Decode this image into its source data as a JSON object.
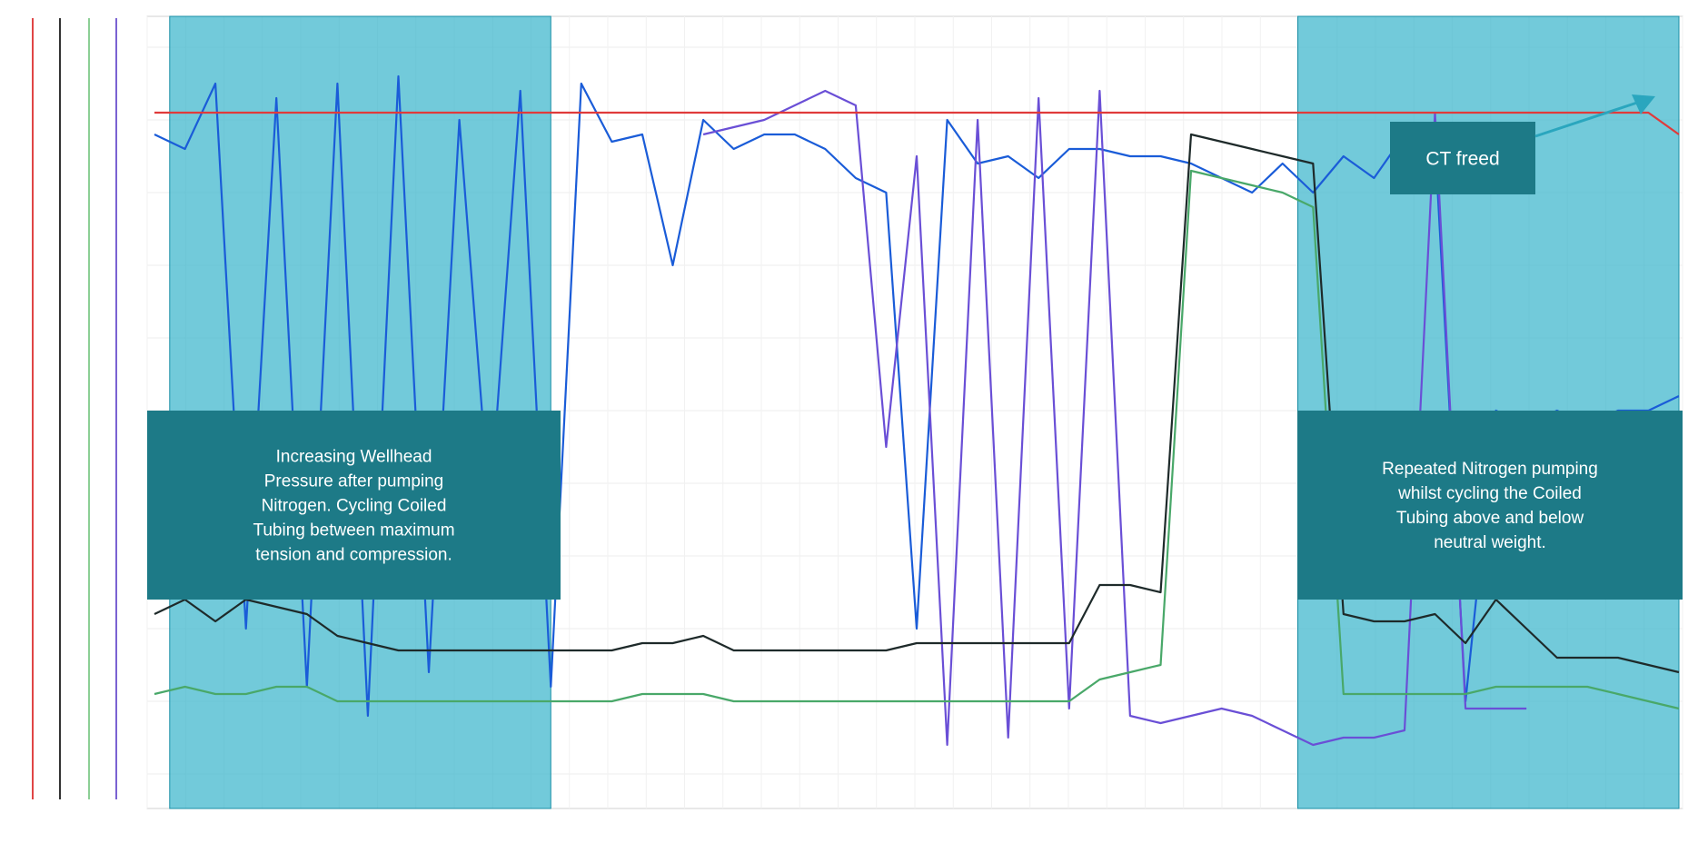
{
  "chart_data": {
    "type": "line",
    "title": "",
    "xlabel": "",
    "ylabel": "",
    "grid": true,
    "legend": "none",
    "x": [
      0,
      2,
      4,
      6,
      8,
      10,
      12,
      14,
      16,
      18,
      20,
      22,
      24,
      26,
      28,
      30,
      32,
      34,
      36,
      38,
      40,
      42,
      44,
      46,
      48,
      50,
      52,
      54,
      56,
      58,
      60,
      62,
      64,
      66,
      68,
      70,
      72,
      74,
      76,
      78,
      80,
      82,
      84,
      86,
      88,
      90,
      92,
      94,
      96,
      98,
      100
    ],
    "xlim": [
      0,
      100
    ],
    "ylim": [
      0,
      100
    ],
    "series": [
      {
        "color": "#1a5cd8",
        "values": [
          88,
          86,
          95,
          20,
          93,
          12,
          95,
          8,
          96,
          14,
          90,
          36,
          94,
          12,
          95,
          87,
          88,
          70,
          90,
          86,
          88,
          88,
          86,
          82,
          80,
          20,
          90,
          84,
          85,
          82,
          86,
          86,
          85,
          85,
          84,
          82,
          80,
          84,
          80,
          85,
          82,
          88,
          87,
          10,
          50,
          48,
          50,
          48,
          50,
          50,
          52
        ]
      },
      {
        "color": "#6a4fd6",
        "values": [
          null,
          null,
          null,
          null,
          null,
          null,
          null,
          null,
          null,
          null,
          null,
          null,
          null,
          null,
          null,
          null,
          null,
          null,
          88,
          89,
          90,
          92,
          94,
          92,
          45,
          85,
          4,
          90,
          5,
          93,
          9,
          94,
          8,
          7,
          8,
          9,
          8,
          6,
          4,
          5,
          5,
          6,
          91,
          9,
          9,
          9,
          null,
          null,
          null,
          null,
          null
        ]
      },
      {
        "color": "#1e2a2a",
        "values": [
          22,
          24,
          21,
          24,
          23,
          22,
          19,
          18,
          17,
          17,
          17,
          17,
          17,
          17,
          17,
          17,
          18,
          18,
          19,
          17,
          17,
          17,
          17,
          17,
          17,
          18,
          18,
          18,
          18,
          18,
          18,
          26,
          26,
          25,
          88,
          87,
          86,
          85,
          84,
          22,
          21,
          21,
          22,
          18,
          24,
          20,
          16,
          16,
          16,
          15,
          14
        ]
      },
      {
        "color": "#49a869",
        "values": [
          11,
          12,
          11,
          11,
          12,
          12,
          10,
          10,
          10,
          10,
          10,
          10,
          10,
          10,
          10,
          10,
          11,
          11,
          11,
          10,
          10,
          10,
          10,
          10,
          10,
          10,
          10,
          10,
          10,
          10,
          10,
          13,
          14,
          15,
          83,
          82,
          81,
          80,
          78,
          11,
          11,
          11,
          11,
          11,
          12,
          12,
          12,
          12,
          11,
          10,
          9
        ]
      },
      {
        "color": "#e03a3a",
        "values": [
          91,
          91,
          91,
          91,
          91,
          91,
          91,
          91,
          91,
          91,
          91,
          91,
          91,
          91,
          91,
          91,
          91,
          91,
          91,
          91,
          91,
          91,
          91,
          91,
          91,
          91,
          91,
          91,
          91,
          91,
          91,
          91,
          91,
          91,
          91,
          91,
          91,
          91,
          91,
          91,
          91,
          91,
          91,
          91,
          91,
          91,
          91,
          91,
          91,
          91,
          88
        ]
      }
    ],
    "shaded_regions": [
      {
        "x_start": 1,
        "x_end": 26
      },
      {
        "x_start": 75,
        "x_end": 100
      }
    ],
    "annotations": [
      {
        "lines": [
          "Increasing Wellhead",
          "Pressure after pumping",
          "Nitrogen. Cycling Coiled",
          "Tubing between maximum",
          "tension and compression."
        ]
      },
      {
        "lines": [
          "Repeated Nitrogen pumping",
          "whilst cycling the Coiled",
          "Tubing above and below",
          "neutral weight."
        ]
      },
      {
        "lines": [
          "CT freed"
        ]
      }
    ]
  }
}
